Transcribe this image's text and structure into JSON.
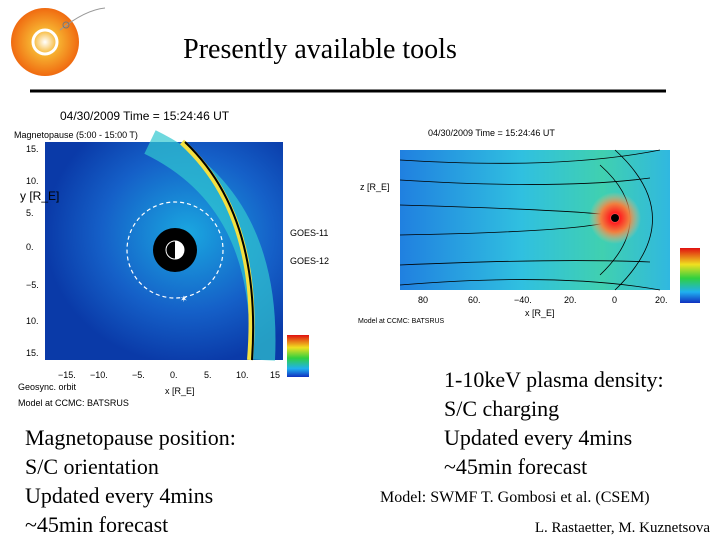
{
  "header": {
    "title": "Presently available tools"
  },
  "left_panel": {
    "time": "04/30/2009 Time = 15:24:46 UT",
    "legend": "Magnetopause (5:00 - 15:00 T)",
    "satellites": [
      "GOES-11",
      "GOES-12"
    ],
    "yticks": [
      "15.",
      "10.",
      "5.",
      "0.",
      "−5.",
      "10.",
      "15."
    ],
    "xticks": [
      "−15.",
      "−10.",
      "−5.",
      "0.",
      "5.",
      "10.",
      "15"
    ],
    "y_label": "y [R_E]",
    "x_label": "x [R_E]",
    "orbits": "Geosync. orbit",
    "footer": "Model at CCMC: BATSRUS"
  },
  "right_panel": {
    "time": "04/30/2009 Time = 15:24:46 UT",
    "y_label": "z [R_E]",
    "x_label": "x [R_E]",
    "xticks": [
      "80",
      "60.",
      "−40.",
      "20.",
      "0",
      "20."
    ],
    "footer": "Model at CCMC: BATSRUS"
  },
  "left_text": [
    "Magnetopause position:",
    "S/C orientation",
    "Updated every 4mins",
    "~45min forecast"
  ],
  "right_text": [
    "1-10keV plasma density:",
    "S/C charging",
    "Updated every 4mins",
    "~45min forecast"
  ],
  "model": "Model: SWMF T. Gombosi et al. (CSEM)",
  "credit": "L. Rastaetter, M. Kuznetsova"
}
